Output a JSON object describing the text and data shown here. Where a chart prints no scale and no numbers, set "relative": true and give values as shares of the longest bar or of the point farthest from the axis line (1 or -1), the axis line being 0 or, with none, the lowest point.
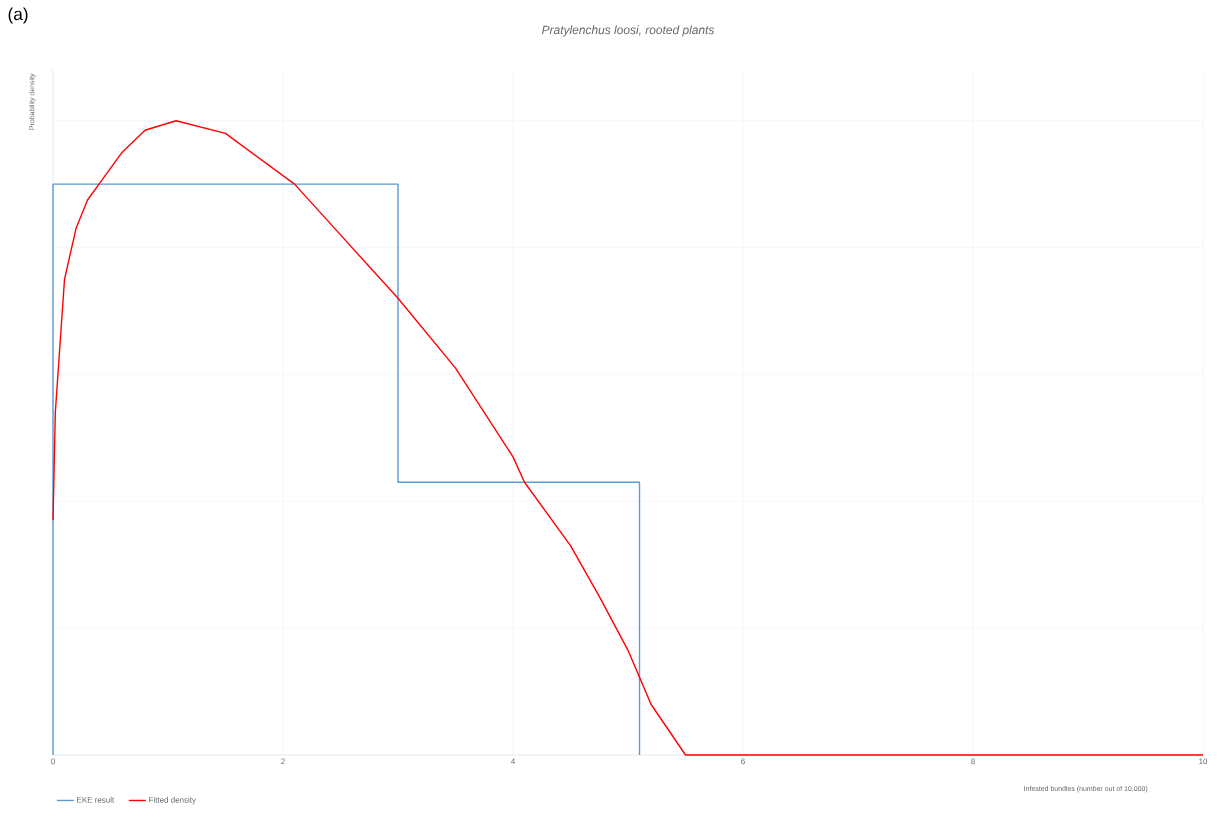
{
  "chart_data": {
    "type": "line",
    "title": "Pratylenchus loosi, rooted plants",
    "xlabel": "Infested bundles (number out of 10,000)",
    "ylabel": "Probability density",
    "annotations": [
      "(a)"
    ],
    "relative": true,
    "xlim": [
      0,
      10
    ],
    "xticks": [
      0,
      2,
      4,
      6,
      8,
      10
    ],
    "grid": true,
    "legend": "bottom left",
    "marker": "none",
    "line_style": "solid",
    "series": [
      {
        "name": "EKE result",
        "color": "#5b9bd5",
        "x": [
          0,
          0,
          3,
          3,
          5.1,
          5.1
        ],
        "values": [
          0,
          0.9,
          0.9,
          0.43,
          0.43,
          0
        ]
      },
      {
        "name": "Fitted density",
        "color": "#ff0000",
        "x": [
          0,
          0.02,
          0.1,
          0.2,
          0.3,
          0.4,
          0.6,
          0.8,
          1.07,
          1.5,
          2.1,
          2.5,
          3.0,
          3.5,
          4.0,
          4.1,
          4.5,
          4.75,
          5.0,
          5.2,
          5.5,
          10
        ],
        "values": [
          0.37,
          0.54,
          0.75,
          0.83,
          0.875,
          0.9,
          0.95,
          0.985,
          1.0,
          0.98,
          0.9,
          0.82,
          0.72,
          0.61,
          0.47,
          0.43,
          0.33,
          0.25,
          0.165,
          0.08,
          0,
          0
        ]
      }
    ]
  }
}
